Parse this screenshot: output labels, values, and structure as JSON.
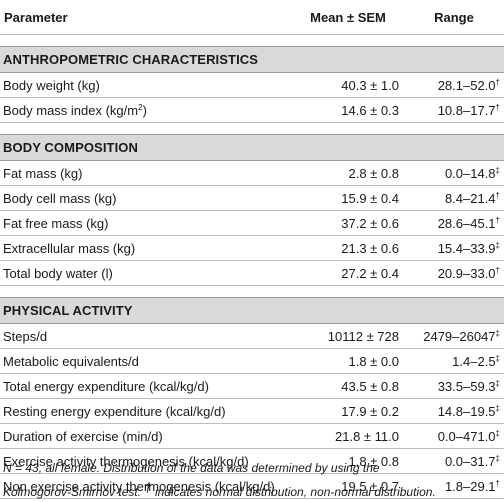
{
  "table": {
    "headers": {
      "parameter": "Parameter",
      "mean": "Mean ± SEM",
      "range": "Range"
    },
    "sections": [
      {
        "title": "ANTHROPOMETRIC CHARACTERISTICS",
        "rows": [
          {
            "parameter": "Body weight (kg)",
            "mean": "40.3 ± 1.0",
            "range": "28.1–52.0",
            "mark": "†"
          },
          {
            "parameter": "Body mass index (kg/m",
            "sup": "2",
            "parameter_end": ")",
            "mean": "14.6 ± 0.3",
            "range": "10.8–17.7",
            "mark": "†"
          }
        ]
      },
      {
        "title": "BODY COMPOSITION",
        "rows": [
          {
            "parameter": "Fat mass (kg)",
            "mean": "2.8 ± 0.8",
            "range": "0.0–14.8",
            "mark": "‡"
          },
          {
            "parameter": "Body cell mass (kg)",
            "mean": "15.9 ± 0.4",
            "range": "8.4–21.4",
            "mark": "†"
          },
          {
            "parameter": "Fat free mass (kg)",
            "mean": "37.2 ± 0.6",
            "range": "28.6–45.1",
            "mark": "†"
          },
          {
            "parameter": "Extracellular mass (kg)",
            "mean": "21.3 ± 0.6",
            "range": "15.4–33.9",
            "mark": "‡"
          },
          {
            "parameter": "Total body water (l)",
            "mean": "27.2 ± 0.4",
            "range": "20.9–33.0",
            "mark": "†"
          }
        ]
      },
      {
        "title": "PHYSICAL ACTIVITY",
        "rows": [
          {
            "parameter": "Steps/d",
            "mean": "10112 ± 728",
            "range": "2479–26047",
            "mark": "‡"
          },
          {
            "parameter": "Metabolic equivalents/d",
            "mean": "1.8 ± 0.0",
            "range": "1.4–2.5",
            "mark": "‡"
          },
          {
            "parameter": "Total energy expenditure (kcal/kg/d)",
            "mean": "43.5 ± 0.8",
            "range": "33.5–59.3",
            "mark": "‡"
          },
          {
            "parameter": "Resting energy expenditure (kcal/kg/d)",
            "mean": "17.9 ± 0.2",
            "range": "14.8–19.5",
            "mark": "‡"
          },
          {
            "parameter": "Duration of exercise (min/d)",
            "mean": "21.8 ± 11.0",
            "range": "0.0–471.0",
            "mark": "‡"
          },
          {
            "parameter": "Exercise activity thermogenesis (kcal/kg/d)",
            "mean": "1.8 ± 0.8",
            "range": "0.0–31.7",
            "mark": "‡"
          },
          {
            "parameter": "Non exercise activity thermogenesis (kcal/kg/d)",
            "mean": "19.5 ± 0.7",
            "range": "1.8–29.1",
            "mark": "†"
          }
        ]
      }
    ]
  },
  "footnote": {
    "line1": "N = 43, all female. Distribution of the data was determined by using the",
    "line2_start": "Kolmogorov-Smirnov test.",
    "dagger": "†",
    "line2_end": "indicates normal distribution, non-normal distribution."
  }
}
